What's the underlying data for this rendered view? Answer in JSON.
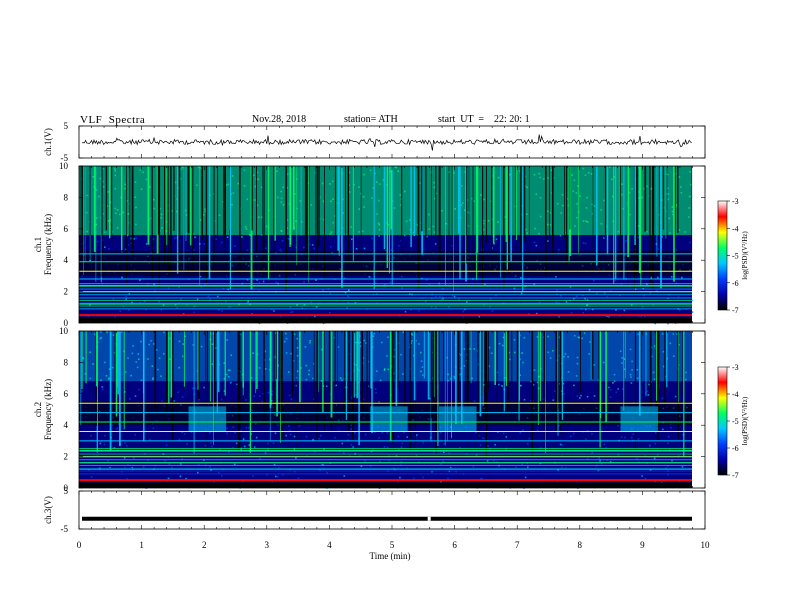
{
  "header": {
    "title": "VLF  Spectra",
    "date": "Nov.28, 2018",
    "station": "station= ATH",
    "start": "start  UT  =    22: 20: 1"
  },
  "colors": {
    "background": "#00007f",
    "colormap": [
      "#000000",
      "#0000aa",
      "#0040ff",
      "#00c8ff",
      "#00ff64",
      "#ffff00",
      "#ff0000",
      "#ffffff"
    ]
  },
  "chart_data": [
    {
      "type": "line",
      "panel": "ch1-waveform",
      "ylabel": "ch.1(V)",
      "yticks": [
        "5",
        "-5"
      ],
      "ylim": [
        -5,
        5
      ],
      "x_range": [
        0,
        10
      ],
      "approx_level": 0
    },
    {
      "type": "heatmap",
      "panel": "ch1-spectrogram",
      "ylabel": "ch.1\nFrequency  (kHz)",
      "yticks": [
        "0",
        "2",
        "4",
        "6",
        "8",
        "10"
      ],
      "ylim": [
        0,
        10
      ],
      "x_range": [
        0,
        9.8
      ],
      "colorbar": {
        "label": "log(PSD)(V²/Hz)",
        "ticks": [
          "-3",
          "-4",
          "-5",
          "-6",
          "-7"
        ],
        "range": [
          -7,
          -3
        ]
      },
      "bands_khz": [
        0.5,
        1.2,
        1.6,
        2.0,
        2.4,
        2.8,
        3.3,
        3.9,
        4.4
      ]
    },
    {
      "type": "heatmap",
      "panel": "ch2-spectrogram",
      "ylabel": "ch.2\nFrequency  (kHz)",
      "yticks": [
        "0",
        "2",
        "4",
        "6",
        "8",
        "10"
      ],
      "ylim": [
        0,
        10
      ],
      "x_range": [
        0,
        9.8
      ],
      "colorbar": {
        "label": "log(PSD)(V²/Hz)",
        "ticks": [
          "-3",
          "-4",
          "-5",
          "-6",
          "-7"
        ],
        "range": [
          -7,
          -3
        ]
      },
      "bands_khz": [
        0.5,
        1.2,
        1.6,
        2.0,
        2.4,
        3.0,
        3.6,
        4.2,
        4.8,
        5.4
      ],
      "hiss_blobs_min": [
        2.0,
        4.9,
        6.0,
        8.9
      ]
    },
    {
      "type": "line",
      "panel": "ch3-waveform",
      "ylabel": "ch.3(V)",
      "yticks": [
        "5",
        "-5"
      ],
      "ylim": [
        -5,
        5
      ],
      "x_range": [
        0,
        9.8
      ],
      "approx_level": -2.3
    }
  ],
  "xaxis": {
    "label": "Time  (min)",
    "ticks": [
      "0",
      "1",
      "2",
      "3",
      "4",
      "5",
      "6",
      "7",
      "8",
      "9",
      "10"
    ],
    "range": [
      0,
      10
    ]
  }
}
